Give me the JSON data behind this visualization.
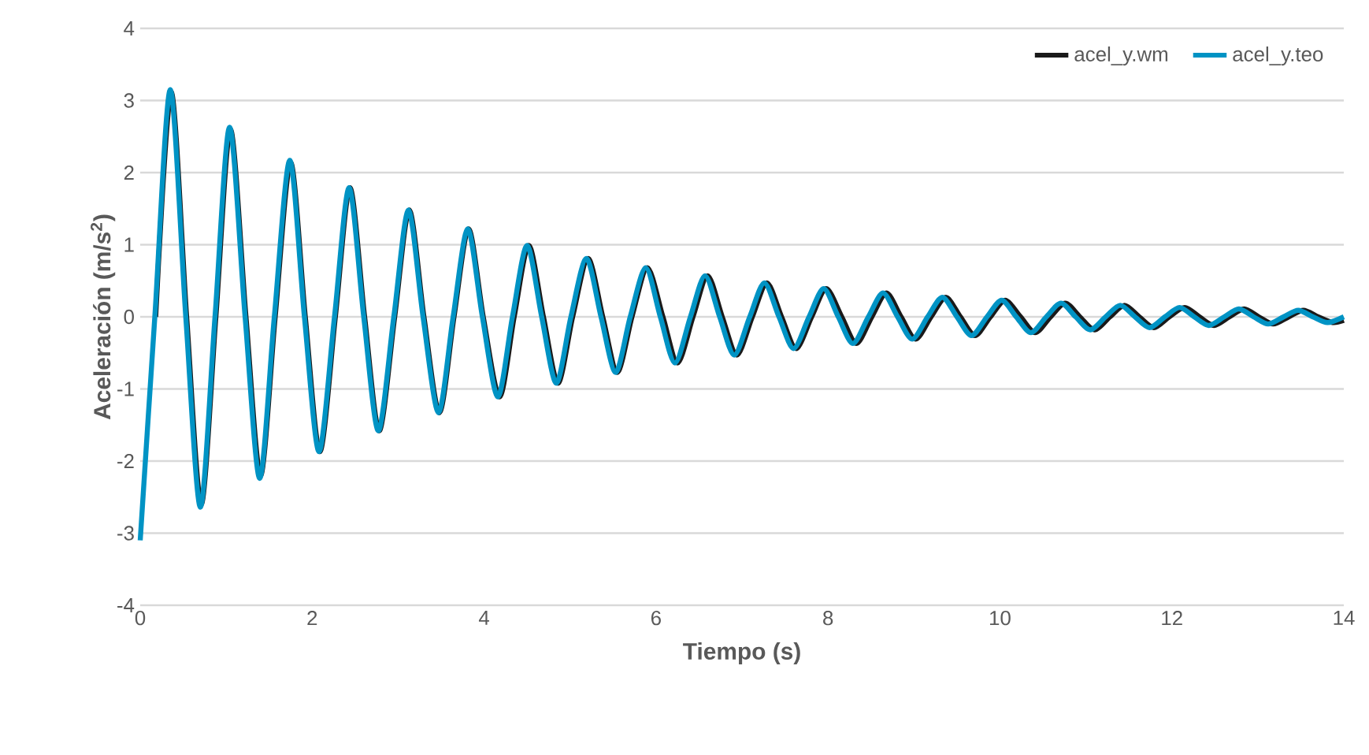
{
  "chart_data": {
    "type": "line",
    "xlabel": "Tiempo (s)",
    "ylabel": "Aceleración (m/s$^{2}$)",
    "xlim": [
      0,
      14
    ],
    "ylim": [
      -4,
      4
    ],
    "xticks": [
      0,
      2,
      4,
      6,
      8,
      10,
      12,
      14
    ],
    "yticks": [
      -4,
      -3,
      -2,
      -1,
      0,
      1,
      2,
      3,
      4
    ],
    "grid": "y",
    "legend": "top right",
    "marker": "none",
    "line_style": "solid",
    "series": [
      {
        "name": "acel_y.wm",
        "color": "#1a1a1a",
        "x": [
          0.18,
          0.36,
          0.54,
          0.71,
          0.88,
          1.05,
          1.23,
          1.4,
          1.57,
          1.75,
          1.92,
          2.09,
          2.27,
          2.44,
          2.61,
          2.78,
          2.96,
          3.13,
          3.3,
          3.48,
          3.65,
          3.82,
          3.99,
          4.18,
          4.35,
          4.52,
          4.69,
          4.86,
          5.03,
          5.21,
          5.38,
          5.55,
          5.72,
          5.9,
          6.08,
          6.25,
          6.43,
          6.6,
          6.77,
          6.94,
          7.12,
          7.29,
          7.46,
          7.63,
          7.81,
          7.98,
          8.16,
          8.33,
          8.51,
          8.68,
          8.85,
          9.02,
          9.2,
          9.37,
          9.54,
          9.71,
          9.89,
          10.06,
          10.24,
          10.41,
          10.59,
          10.76,
          10.93,
          11.1,
          11.28,
          11.45,
          11.62,
          11.79,
          11.97,
          12.15,
          12.32,
          12.49,
          12.67,
          12.84,
          13.01,
          13.18,
          13.36,
          13.53,
          13.7,
          13.87,
          14
        ],
        "values": [
          0,
          3.12,
          0,
          -2.6,
          0,
          2.6,
          0,
          -2.2,
          0,
          2.14,
          0,
          -1.87,
          0,
          1.79,
          0,
          -1.58,
          0,
          1.48,
          0,
          -1.33,
          0,
          1.22,
          0,
          -1.11,
          0,
          0.99,
          0,
          -0.92,
          0,
          0.81,
          0,
          -0.77,
          0,
          0.68,
          0,
          -0.64,
          0,
          0.57,
          0,
          -0.53,
          0,
          0.47,
          0,
          -0.44,
          0,
          0.39,
          0,
          -0.37,
          0,
          0.33,
          0,
          -0.31,
          0,
          0.27,
          0,
          -0.26,
          0,
          0.23,
          0,
          -0.22,
          0,
          0.19,
          0,
          -0.18,
          0,
          0.16,
          0,
          -0.15,
          0,
          0.13,
          0,
          -0.12,
          0,
          0.11,
          0,
          -0.1,
          0,
          0.09,
          0,
          -0.08,
          -0.05
        ]
      },
      {
        "name": "acel_y.teo",
        "color": "#0093c4",
        "x": [
          0,
          0.17,
          0.35,
          0.53,
          0.7,
          0.87,
          1.04,
          1.22,
          1.39,
          1.56,
          1.74,
          1.91,
          2.08,
          2.26,
          2.43,
          2.6,
          2.77,
          2.95,
          3.12,
          3.29,
          3.47,
          3.64,
          3.81,
          3.98,
          4.16,
          4.33,
          4.5,
          4.67,
          4.84,
          5.01,
          5.19,
          5.36,
          5.53,
          5.7,
          5.88,
          6.05,
          6.22,
          6.4,
          6.57,
          6.74,
          6.91,
          7.09,
          7.26,
          7.43,
          7.6,
          7.78,
          7.95,
          8.12,
          8.29,
          8.47,
          8.64,
          8.81,
          8.98,
          9.16,
          9.33,
          9.5,
          9.67,
          9.85,
          10.02,
          10.19,
          10.36,
          10.54,
          10.71,
          10.88,
          11.05,
          11.23,
          11.4,
          11.57,
          11.74,
          11.92,
          12.09,
          12.26,
          12.43,
          12.61,
          12.78,
          12.95,
          13.12,
          13.3,
          13.47,
          13.64,
          13.81,
          14
        ],
        "values": [
          -3.1,
          0,
          3.15,
          0,
          -2.64,
          0,
          2.63,
          0,
          -2.24,
          0,
          2.17,
          0,
          -1.87,
          0,
          1.79,
          0,
          -1.58,
          0,
          1.48,
          0,
          -1.33,
          0,
          1.22,
          0,
          -1.11,
          0,
          0.99,
          0,
          -0.92,
          0,
          0.81,
          0,
          -0.77,
          0,
          0.68,
          0,
          -0.64,
          0,
          0.57,
          0,
          -0.53,
          0,
          0.47,
          0,
          -0.44,
          0,
          0.39,
          0,
          -0.37,
          0,
          0.33,
          0,
          -0.31,
          0,
          0.27,
          0,
          -0.26,
          0,
          0.23,
          0,
          -0.22,
          0,
          0.19,
          0,
          -0.18,
          0,
          0.16,
          0,
          -0.15,
          0,
          0.13,
          0,
          -0.12,
          0,
          0.11,
          0,
          -0.1,
          0,
          0.09,
          0,
          -0.08,
          0
        ]
      }
    ]
  }
}
